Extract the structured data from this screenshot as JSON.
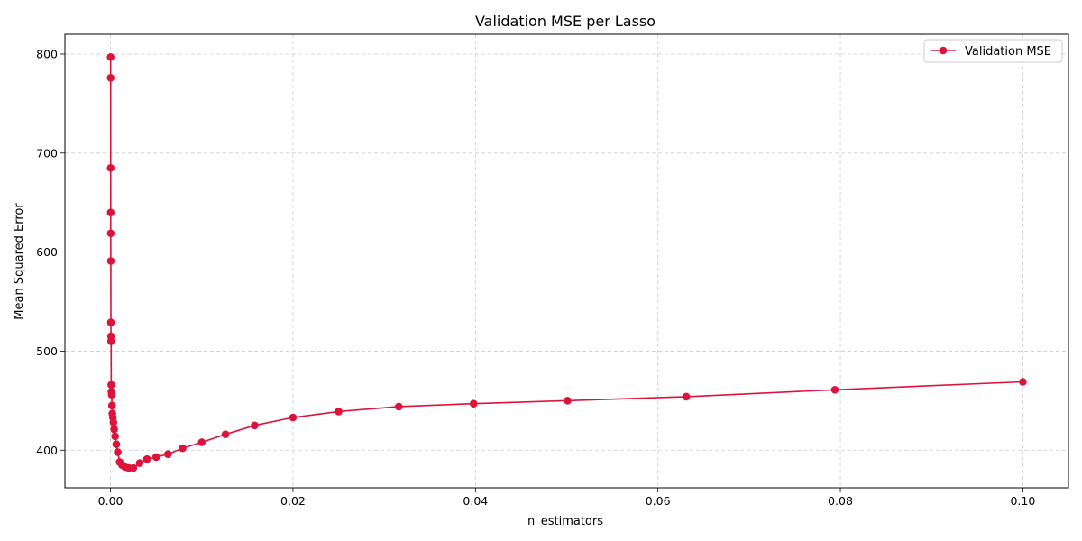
{
  "chart_data": {
    "type": "line",
    "title": "Validation MSE per Lasso",
    "xlabel": "n_estimators",
    "ylabel": "Mean Squared Error",
    "xlim": [
      -0.005,
      0.105
    ],
    "ylim": [
      362,
      820
    ],
    "x_ticks": [
      0.0,
      0.02,
      0.04,
      0.06,
      0.08,
      0.1
    ],
    "x_tick_labels": [
      "0.00",
      "0.02",
      "0.04",
      "0.06",
      "0.08",
      "0.10"
    ],
    "y_ticks": [
      400,
      500,
      600,
      700,
      800
    ],
    "y_tick_labels": [
      "400",
      "500",
      "600",
      "700",
      "800"
    ],
    "grid": true,
    "legend_position": "top-right",
    "series": [
      {
        "name": "Validation MSE",
        "color": "#dc143c",
        "marker": "circle",
        "x": [
          1e-05,
          1.3e-05,
          1.6e-05,
          2e-05,
          2.5e-05,
          3.2e-05,
          4e-05,
          5e-05,
          6.3e-05,
          7.9e-05,
          0.0001,
          0.000126,
          0.000158,
          0.0002,
          0.00025,
          0.00032,
          0.0004,
          0.0005,
          0.00063,
          0.00079,
          0.001,
          0.00126,
          0.00158,
          0.002,
          0.0025,
          0.0032,
          0.004,
          0.005,
          0.0063,
          0.0079,
          0.01,
          0.0126,
          0.0158,
          0.02,
          0.025,
          0.0316,
          0.0398,
          0.0501,
          0.0631,
          0.0794,
          0.1
        ],
        "y": [
          797,
          776,
          685,
          640,
          619,
          591,
          529,
          515,
          510,
          466,
          459,
          456,
          445,
          437,
          433,
          428,
          421,
          414,
          406,
          398,
          388,
          385,
          383,
          382,
          382,
          387,
          391,
          393,
          396,
          402,
          408,
          416,
          425,
          433,
          439,
          444,
          447,
          450,
          454,
          461,
          469
        ]
      }
    ]
  }
}
